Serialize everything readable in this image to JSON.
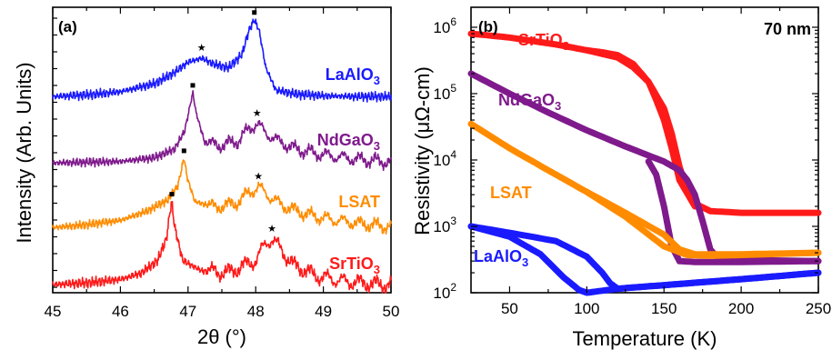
{
  "colors": {
    "LaAlO3": "#1a1aff",
    "NdGaO3": "#7f1a8c",
    "LSAT": "#ff8c00",
    "SrTiO3": "#ff1a1a"
  },
  "chart_data": [
    {
      "type": "line",
      "panel": "(a)",
      "xlabel": "2θ (°)",
      "ylabel": "Intensity (Arb. Units)",
      "xlim": [
        45,
        50
      ],
      "xticks": [
        "45",
        "46",
        "47",
        "48",
        "49",
        "50"
      ],
      "y_scale": "offset, unlabeled",
      "series": [
        {
          "name": "LaAlO",
          "sub": "3",
          "color": "#1a1aff",
          "substrate_peak_2theta": 47.98,
          "film_peak_2theta": 47.2,
          "x": [
            45.0,
            45.5,
            46.0,
            46.5,
            46.8,
            47.0,
            47.2,
            47.4,
            47.6,
            47.8,
            47.9,
            47.98,
            48.05,
            48.15,
            48.3,
            48.6,
            49.0,
            49.5,
            50.0
          ],
          "y": [
            0.02,
            0.04,
            0.08,
            0.18,
            0.32,
            0.45,
            0.5,
            0.42,
            0.38,
            0.55,
            0.85,
            0.98,
            0.85,
            0.38,
            0.1,
            0.05,
            0.03,
            0.02,
            0.02
          ]
        },
        {
          "name": "NdGaO",
          "sub": "3",
          "color": "#7f1a8c",
          "substrate_peak_2theta": 47.07,
          "film_peak_2theta": 48.02,
          "x": [
            45.0,
            45.5,
            46.0,
            46.5,
            46.8,
            46.95,
            47.03,
            47.07,
            47.12,
            47.25,
            47.5,
            47.75,
            47.9,
            48.02,
            48.15,
            48.35,
            48.6,
            49.0,
            49.5,
            50.0
          ],
          "y": [
            0.01,
            0.02,
            0.03,
            0.08,
            0.2,
            0.45,
            0.8,
            0.98,
            0.7,
            0.28,
            0.25,
            0.32,
            0.48,
            0.55,
            0.42,
            0.3,
            0.2,
            0.12,
            0.06,
            0.02
          ]
        },
        {
          "name": "LSAT",
          "sub": "",
          "color": "#ff8c00",
          "substrate_peak_2theta": 46.94,
          "film_peak_2theta": 48.04,
          "x": [
            45.0,
            45.5,
            46.0,
            46.4,
            46.7,
            46.85,
            46.91,
            46.94,
            46.99,
            47.1,
            47.4,
            47.7,
            47.9,
            48.04,
            48.2,
            48.4,
            48.7,
            49.0,
            49.5,
            50.0
          ],
          "y": [
            0.02,
            0.06,
            0.12,
            0.25,
            0.4,
            0.6,
            0.85,
            0.98,
            0.7,
            0.38,
            0.3,
            0.35,
            0.5,
            0.58,
            0.45,
            0.32,
            0.22,
            0.15,
            0.08,
            0.03
          ]
        },
        {
          "name": "SrTiO",
          "sub": "3",
          "color": "#ff1a1a",
          "substrate_peak_2theta": 46.76,
          "film_peak_2theta": 48.24,
          "x": [
            45.0,
            45.5,
            46.0,
            46.3,
            46.55,
            46.68,
            46.73,
            46.76,
            46.8,
            46.92,
            47.2,
            47.6,
            48.0,
            48.15,
            48.24,
            48.35,
            48.55,
            48.9,
            49.3,
            49.7,
            50.0
          ],
          "y": [
            0.02,
            0.04,
            0.08,
            0.15,
            0.3,
            0.55,
            0.85,
            0.98,
            0.7,
            0.3,
            0.18,
            0.16,
            0.3,
            0.5,
            0.55,
            0.45,
            0.25,
            0.12,
            0.06,
            0.03,
            0.02
          ]
        }
      ]
    },
    {
      "type": "line",
      "panel": "(b)",
      "annotation": "70 nm",
      "xlabel": "Temperature (K)",
      "ylabel": "Resistivity (μΩ-cm)",
      "xlim": [
        25,
        250
      ],
      "xticks": [
        "50",
        "100",
        "150",
        "200",
        "250"
      ],
      "y_scale": "log",
      "ylim": [
        100,
        2000000
      ],
      "yticks": [
        "10",
        "10",
        "10",
        "10",
        "10"
      ],
      "ytick_exponents": [
        "2",
        "3",
        "4",
        "5",
        "6"
      ],
      "series": [
        {
          "name": "SrTiO",
          "sub": "3",
          "color": "#ff1a1a",
          "cooling": {
            "x": [
              25,
              50,
              80,
              100,
              120,
              130,
              140,
              150,
              155,
              160,
              165,
              170,
              180,
              200,
              250
            ],
            "y": [
              800000,
              700000,
              550000,
              450000,
              350000,
              250000,
              150000,
              60000,
              25000,
              8000,
              3500,
              2200,
              1700,
              1600,
              1600
            ]
          },
          "warming": {
            "x": [
              100,
              110,
              120,
              130,
              140,
              145,
              150,
              155,
              160,
              170
            ],
            "y": [
              450000,
              420000,
              380000,
              280000,
              150000,
              80000,
              40000,
              15000,
              5000,
              2000
            ]
          }
        },
        {
          "name": "NdGaO",
          "sub": "3",
          "color": "#7f1a8c",
          "cooling": {
            "x": [
              25,
              50,
              75,
              100,
              125,
              150,
              160,
              165,
              170,
              175,
              180,
              185,
              200,
              250
            ],
            "y": [
              200000,
              100000,
              52000,
              28000,
              16000,
              9500,
              7000,
              5000,
              3000,
              1200,
              450,
              330,
              310,
              300
            ]
          },
          "warming": {
            "x": [
              140,
              145,
              150,
              155,
              160,
              170,
              200,
              250
            ],
            "y": [
              9500,
              6000,
              2000,
              500,
              300,
              290,
              290,
              300
            ]
          }
        },
        {
          "name": "LSAT",
          "sub": "",
          "color": "#ff8c00",
          "cooling": {
            "x": [
              25,
              50,
              75,
              100,
              125,
              150,
              160,
              170,
              200,
              250
            ],
            "y": [
              35000,
              15000,
              7000,
              3300,
              1600,
              750,
              450,
              380,
              380,
              400
            ]
          },
          "warming": {
            "x": [
              100,
              125,
              150,
              165,
              180,
              200,
              250
            ],
            "y": [
              3300,
              1400,
              500,
              370,
              360,
              370,
              400
            ]
          }
        },
        {
          "name": "LaAlO",
          "sub": "3",
          "color": "#1a1aff",
          "cooling": {
            "x": [
              25,
              50,
              70,
              85,
              95,
              100,
              120,
              150,
              200,
              250
            ],
            "y": [
              1000,
              700,
              380,
              170,
              110,
              100,
              115,
              130,
              160,
              200
            ]
          },
          "warming": {
            "x": [
              25,
              50,
              80,
              100,
              110,
              115,
              120,
              150,
              200,
              250
            ],
            "y": [
              1000,
              800,
              600,
              350,
              200,
              140,
              115,
              130,
              160,
              200
            ]
          }
        }
      ]
    }
  ]
}
